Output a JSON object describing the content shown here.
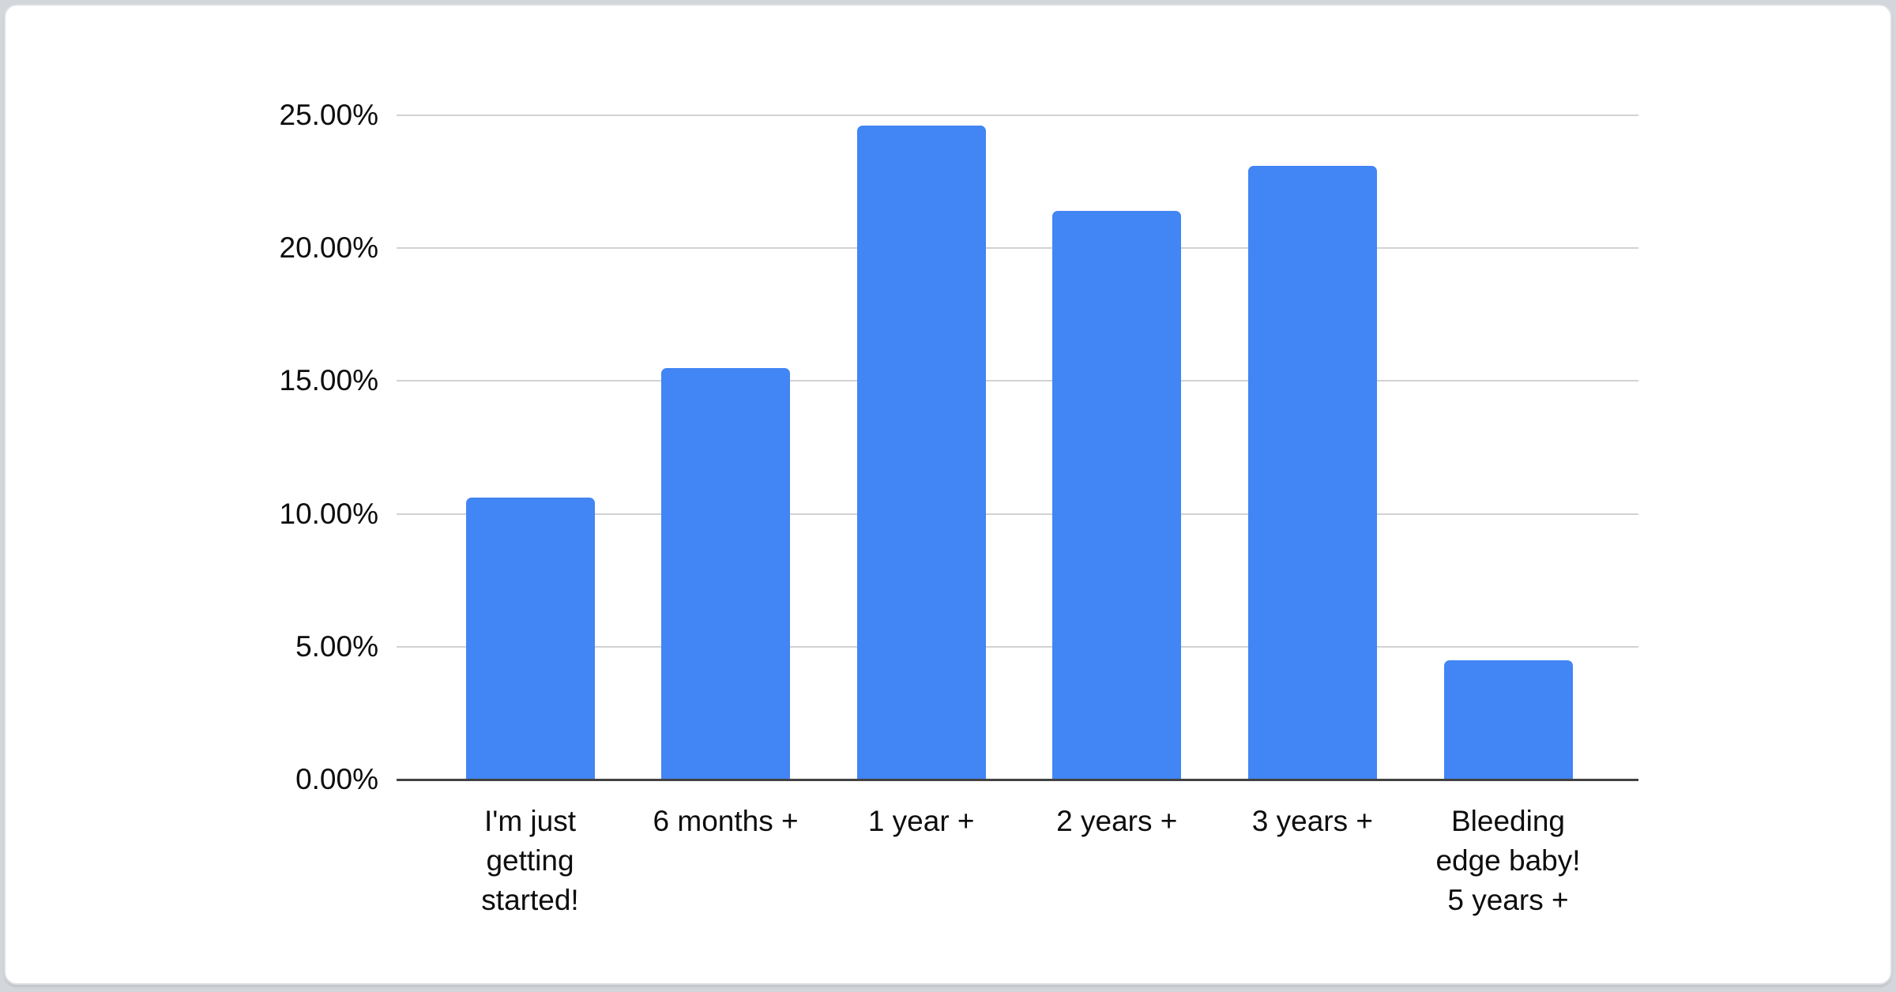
{
  "page": {
    "background_color": "#d3d7db",
    "card_background_color": "#ffffff",
    "card_border_color": "#dadde1"
  },
  "chart_data": {
    "type": "bar",
    "title": "",
    "xlabel": "",
    "ylabel": "",
    "categories": [
      "I'm just getting started!",
      "6 months +",
      "1 year +",
      "2 years +",
      "3 years +",
      "Bleeding edge baby! 5 years +"
    ],
    "category_lines": [
      [
        "I'm just",
        "getting",
        "started!"
      ],
      [
        "6 months +"
      ],
      [
        "1 year +"
      ],
      [
        "2 years +"
      ],
      [
        "3 years +"
      ],
      [
        "Bleeding",
        "edge baby!",
        "5 years +"
      ]
    ],
    "values": [
      10.6,
      15.5,
      24.6,
      21.4,
      23.1,
      4.5
    ],
    "value_unit": "%",
    "ylim": [
      0,
      25
    ],
    "y_ticks": [
      0,
      5,
      10,
      15,
      20,
      25
    ],
    "y_tick_labels": [
      "0.00%",
      "5.00%",
      "10.00%",
      "15.00%",
      "20.00%",
      "25.00%"
    ],
    "grid": true,
    "legend_position": "none",
    "bar_color": "#4285f4",
    "axis_line_color": "#424242",
    "gridline_color": "#d2d2d2",
    "text_color": "#0d0d0d"
  }
}
